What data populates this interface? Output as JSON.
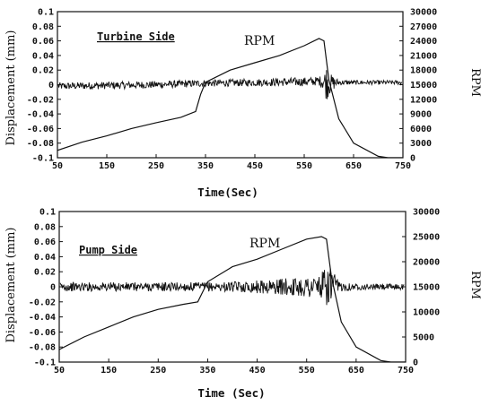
{
  "chart_data": [
    {
      "type": "line",
      "title": "Turbine Side",
      "xlabel": "Time(Sec)",
      "ylabel": "Displacement (mm)",
      "y2label": "RPM",
      "annotation": "RPM",
      "xlim": [
        50,
        750
      ],
      "ylim": [
        -0.1,
        0.1
      ],
      "y2lim": [
        0,
        30000
      ],
      "xticks": [
        "50",
        "150",
        "250",
        "350",
        "450",
        "550",
        "650",
        "750"
      ],
      "yticks": [
        "-0.1",
        "-0.08",
        "-0.06",
        "-0.04",
        "-0.02",
        "0",
        "0.02",
        "0.04",
        "0.06",
        "0.08",
        "0.1"
      ],
      "y2ticks": [
        "0",
        "3000",
        "6000",
        "9000",
        "12000",
        "15000",
        "18000",
        "21000",
        "24000",
        "27000",
        "30000"
      ],
      "series": [
        {
          "axis": "right",
          "x": [
            50,
            100,
            150,
            200,
            250,
            300,
            330,
            340,
            350,
            400,
            450,
            500,
            550,
            580,
            590,
            600,
            620,
            650,
            700,
            720,
            750
          ],
          "y": [
            1500,
            3200,
            4500,
            6000,
            7200,
            8300,
            9500,
            13000,
            15500,
            18000,
            19500,
            21000,
            23000,
            24500,
            24000,
            16000,
            8000,
            3000,
            300,
            0,
            0
          ]
        },
        {
          "axis": "left",
          "x": [
            50,
            150,
            250,
            350,
            450,
            550,
            580,
            590,
            595,
            605,
            620,
            650,
            750
          ],
          "amplitude": [
            0.005,
            0.005,
            0.005,
            0.005,
            0.005,
            0.006,
            0.006,
            0.012,
            0.025,
            0.012,
            0.004,
            0.003,
            0.003
          ],
          "center": [
            -0.002,
            -0.001,
            0.0,
            0.002,
            0.003,
            0.004,
            0.005,
            0.004,
            0.003,
            0.002,
            0.003,
            0.003,
            0.003
          ]
        }
      ]
    },
    {
      "type": "line",
      "title": "Pump Side",
      "xlabel": "Time (Sec)",
      "ylabel": "Displacement (mm)",
      "y2label": "RPM",
      "annotation": "RPM",
      "xlim": [
        50,
        750
      ],
      "ylim": [
        -0.1,
        0.1
      ],
      "y2lim": [
        0,
        30000
      ],
      "xticks": [
        "50",
        "150",
        "250",
        "350",
        "450",
        "550",
        "650",
        "750"
      ],
      "yticks": [
        "-0.1",
        "-0.08",
        "-0.06",
        "-0.04",
        "-0.02",
        "0",
        "0.02",
        "0.04",
        "0.06",
        "0.08",
        "0.1"
      ],
      "y2ticks": [
        "0",
        "5000",
        "10000",
        "15000",
        "20000",
        "25000",
        "30000"
      ],
      "series": [
        {
          "axis": "right",
          "x": [
            50,
            100,
            150,
            200,
            250,
            300,
            330,
            340,
            350,
            400,
            450,
            500,
            550,
            580,
            590,
            600,
            620,
            650,
            700,
            720,
            750
          ],
          "y": [
            2500,
            5000,
            7000,
            9000,
            10500,
            11500,
            12000,
            14000,
            16000,
            19000,
            20500,
            22500,
            24500,
            25000,
            24500,
            17000,
            8000,
            3000,
            300,
            0,
            0
          ]
        },
        {
          "axis": "left",
          "x": [
            50,
            150,
            250,
            350,
            420,
            480,
            530,
            560,
            580,
            590,
            595,
            605,
            620,
            650,
            750
          ],
          "amplitude": [
            0.006,
            0.006,
            0.006,
            0.006,
            0.007,
            0.01,
            0.012,
            0.016,
            0.02,
            0.025,
            0.032,
            0.018,
            0.006,
            0.004,
            0.004
          ],
          "center": [
            0.0,
            0.0,
            0.0,
            0.0,
            0.0,
            0.0,
            0.0,
            0.0,
            0.0,
            0.0,
            0.002,
            0.0,
            0.0,
            0.0,
            0.0
          ]
        }
      ]
    }
  ]
}
